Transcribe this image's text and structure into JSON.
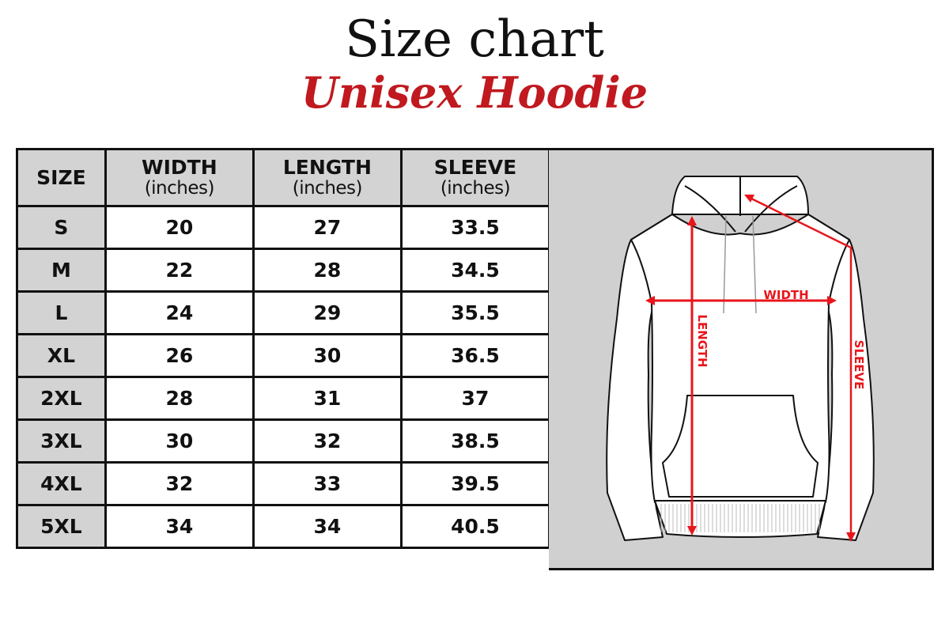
{
  "title": "Size chart",
  "subtitle": "Unisex Hoodie",
  "table": {
    "headers": [
      {
        "label": "SIZE",
        "unit": ""
      },
      {
        "label": "WIDTH",
        "unit": "(inches)"
      },
      {
        "label": "LENGTH",
        "unit": "(inches)"
      },
      {
        "label": "SLEEVE",
        "unit": "(inches)"
      }
    ],
    "rows": [
      [
        "S",
        "20",
        "27",
        "33.5"
      ],
      [
        "M",
        "22",
        "28",
        "34.5"
      ],
      [
        "L",
        "24",
        "29",
        "35.5"
      ],
      [
        "XL",
        "26",
        "30",
        "36.5"
      ],
      [
        "2XL",
        "28",
        "31",
        "37"
      ],
      [
        "3XL",
        "30",
        "32",
        "38.5"
      ],
      [
        "4XL",
        "32",
        "33",
        "39.5"
      ],
      [
        "5XL",
        "34",
        "34",
        "40.5"
      ]
    ]
  },
  "diagram": {
    "width_label": "WIDTH",
    "length_label": "LENGTH",
    "sleeve_label": "SLEEVE",
    "arrow_color": "#e8151b"
  },
  "colors": {
    "accent": "#c0191f",
    "header_bg": "#d3d3d3",
    "panel_bg": "#d0d0d0"
  }
}
